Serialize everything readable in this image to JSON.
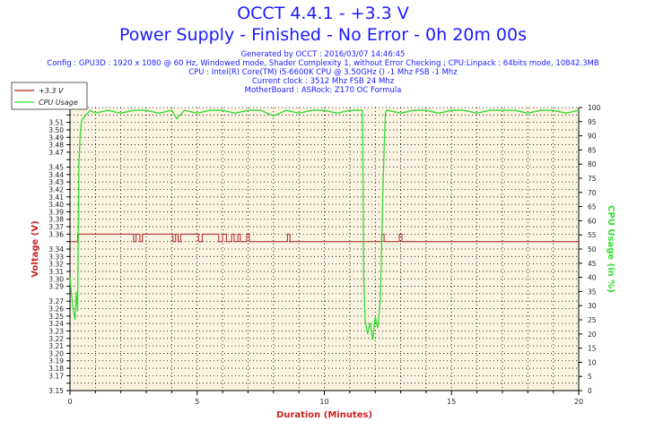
{
  "header": {
    "title": "OCCT 4.4.1 - +3.3 V",
    "subtitle": "Power Supply - Finished - No Error - 0h 20m 00s",
    "info_lines": [
      "Generated by OCCT : 2016/03/07 14:46:45",
      "Config : GPU3D : 1920 x 1080 @ 60 Hz, Windowed mode, Shader Complexity 1, without Error Checking ; CPU:Linpack : 64bits mode, 10842.3MB",
      "CPU : Intel(R) Core(TM) i5-6600K CPU @ 3.50GHz () -1 Mhz FSB -1 Mhz",
      "Current clock : 3512 Mhz FSB 24 Mhz",
      "MotherBoard : ASRock: Z170 OC Formula"
    ]
  },
  "colors": {
    "voltage": "#b22222",
    "cpu": "#33dd33",
    "axis_title": "#cc2222",
    "plot_bg": "#faf3e1",
    "header": "#1a1aff"
  },
  "chart_data": {
    "type": "line",
    "xlabel": "Duration (Minutes)",
    "ylabel_left": "Voltage (V)",
    "ylabel_right": "CPU Usage (in %)",
    "xlim": [
      0,
      20
    ],
    "ylim_left": [
      3.15,
      3.53
    ],
    "ylim_right": [
      0,
      100
    ],
    "x_ticks": [
      0,
      5,
      10,
      15,
      20
    ],
    "y_left_ticks": [
      3.15,
      3.16,
      3.17,
      3.18,
      3.19,
      3.2,
      3.21,
      3.22,
      3.23,
      3.24,
      3.25,
      3.26,
      3.27,
      3.28,
      3.29,
      3.3,
      3.31,
      3.32,
      3.33,
      3.34,
      3.35,
      3.36,
      3.37,
      3.38,
      3.39,
      3.4,
      3.41,
      3.42,
      3.43,
      3.44,
      3.45,
      3.46,
      3.47,
      3.48,
      3.49,
      3.5,
      3.51,
      3.52,
      3.53
    ],
    "y_left_tick_labels": [
      "3.15",
      "3.17",
      "3.18",
      "3.19",
      "3.20",
      "3.21",
      "3.22",
      "3.23",
      "3.24",
      "3.25",
      "3.26",
      "3.27",
      "3.29",
      "3.30",
      "3.31",
      "3.32",
      "3.33",
      "3.34",
      "3.36",
      "3.37",
      "3.38",
      "3.39",
      "3.40",
      "3.41",
      "3.42",
      "3.43",
      "3.44",
      "3.45",
      "3.47",
      "3.48",
      "3.49",
      "3.50",
      "3.51"
    ],
    "y_right_ticks": [
      0,
      5,
      10,
      15,
      20,
      25,
      30,
      35,
      40,
      45,
      50,
      55,
      60,
      65,
      70,
      75,
      80,
      85,
      90,
      95,
      100
    ],
    "grid": true,
    "legend_position": "top-left",
    "series": [
      {
        "name": "+3.3 V",
        "axis": "left",
        "x": [
          0,
          0.3,
          0.3,
          2.5,
          2.5,
          2.6,
          2.6,
          2.75,
          2.75,
          2.85,
          2.85,
          4.05,
          4.05,
          4.15,
          4.15,
          4.25,
          4.25,
          4.35,
          4.35,
          5.05,
          5.05,
          5.2,
          5.2,
          5.85,
          5.85,
          6.0,
          6.0,
          6.15,
          6.15,
          6.35,
          6.35,
          6.45,
          6.45,
          6.6,
          6.6,
          6.7,
          6.7,
          6.95,
          6.95,
          7.05,
          7.05,
          8.55,
          8.55,
          8.65,
          8.65,
          12.25,
          12.25,
          12.35,
          12.35,
          12.95,
          12.95,
          13.05,
          13.05,
          20
        ],
        "values": [
          3.35,
          3.35,
          3.36,
          3.36,
          3.35,
          3.35,
          3.36,
          3.36,
          3.35,
          3.35,
          3.36,
          3.36,
          3.35,
          3.35,
          3.36,
          3.36,
          3.35,
          3.35,
          3.36,
          3.36,
          3.35,
          3.35,
          3.36,
          3.36,
          3.35,
          3.35,
          3.36,
          3.36,
          3.35,
          3.35,
          3.36,
          3.36,
          3.35,
          3.35,
          3.36,
          3.36,
          3.35,
          3.35,
          3.36,
          3.36,
          3.35,
          3.35,
          3.36,
          3.36,
          3.35,
          3.35,
          3.36,
          3.36,
          3.35,
          3.35,
          3.36,
          3.36,
          3.35,
          3.35
        ]
      },
      {
        "name": "CPU Usage",
        "axis": "right",
        "x": [
          0,
          0.1,
          0.2,
          0.25,
          0.3,
          0.35,
          0.4,
          0.45,
          0.5,
          0.6,
          0.7,
          0.8,
          1.0,
          1.5,
          2.0,
          2.5,
          3.0,
          3.5,
          4.0,
          4.2,
          4.5,
          5.0,
          5.5,
          6.0,
          6.5,
          7.0,
          7.5,
          8.0,
          8.5,
          9.0,
          9.5,
          10.0,
          10.5,
          11.0,
          11.5,
          11.55,
          11.6,
          11.7,
          11.8,
          11.9,
          12.0,
          12.1,
          12.2,
          12.25,
          12.3,
          12.35,
          12.4,
          12.45,
          12.5,
          13.0,
          13.5,
          14.0,
          14.5,
          15.0,
          15.5,
          16.0,
          16.5,
          17.0,
          17.5,
          18.0,
          18.5,
          19.0,
          19.5,
          20.0
        ],
        "values": [
          40,
          30,
          25,
          35,
          28,
          80,
          90,
          95,
          96,
          97,
          98,
          99,
          98,
          99,
          98,
          99,
          99,
          98,
          99,
          96,
          99,
          98,
          99,
          99,
          98,
          99,
          99,
          97,
          99,
          98,
          99,
          99,
          98,
          99,
          99,
          40,
          25,
          20,
          24,
          18,
          26,
          22,
          32,
          50,
          70,
          85,
          98,
          99,
          99,
          98,
          99,
          99,
          98,
          99,
          99,
          98,
          99,
          99,
          99,
          98,
          99,
          99,
          98,
          99
        ]
      }
    ]
  }
}
